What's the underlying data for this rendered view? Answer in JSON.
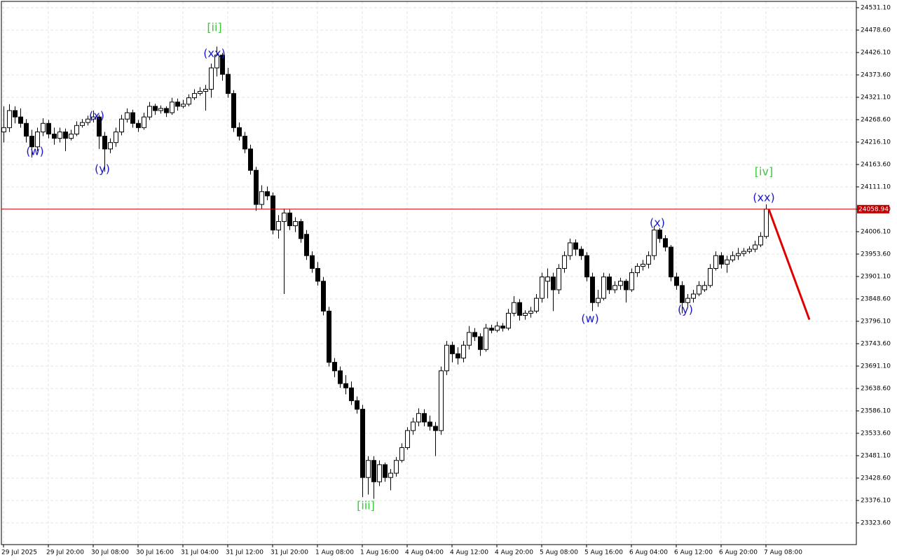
{
  "chart_data": {
    "type": "candlestick",
    "up_color": "#ffffff",
    "down_color": "#000000",
    "outline_color": "#000000",
    "grid": true,
    "ylim": [
      23272.7,
      24545.9
    ],
    "yticks": [
      {
        "value": 24531.1,
        "label": "24531.10"
      },
      {
        "value": 24478.6,
        "label": "24478.60"
      },
      {
        "value": 24426.1,
        "label": "24426.10"
      },
      {
        "value": 24373.6,
        "label": "24373.60"
      },
      {
        "value": 24321.1,
        "label": "24321.10"
      },
      {
        "value": 24268.6,
        "label": "24268.60"
      },
      {
        "value": 24216.1,
        "label": "24216.10"
      },
      {
        "value": 24163.6,
        "label": "24163.60"
      },
      {
        "value": 24111.1,
        "label": "24111.10"
      },
      {
        "value": 24058.6,
        "label": "24058.60"
      },
      {
        "value": 24006.1,
        "label": "24006.10"
      },
      {
        "value": 23953.6,
        "label": "23953.60"
      },
      {
        "value": 23901.1,
        "label": "23901.10"
      },
      {
        "value": 23848.6,
        "label": "23848.60"
      },
      {
        "value": 23796.1,
        "label": "23796.10"
      },
      {
        "value": 23743.6,
        "label": "23743.60"
      },
      {
        "value": 23691.1,
        "label": "23691.10"
      },
      {
        "value": 23638.6,
        "label": "23638.60"
      },
      {
        "value": 23586.1,
        "label": "23586.10"
      },
      {
        "value": 23533.6,
        "label": "23533.60"
      },
      {
        "value": 23481.1,
        "label": "23481.10"
      },
      {
        "value": 23428.6,
        "label": "23428.60"
      },
      {
        "value": 23376.1,
        "label": "23376.10"
      },
      {
        "value": 23323.6,
        "label": "23323.60"
      }
    ],
    "xticks": [
      {
        "value": 0,
        "label": "29 Jul 2025"
      },
      {
        "value": 8,
        "label": "29 Jul 20:00"
      },
      {
        "value": 16,
        "label": "30 Jul 08:00"
      },
      {
        "value": 24,
        "label": "30 Jul 16:00"
      },
      {
        "value": 32,
        "label": "31 Jul 04:00"
      },
      {
        "value": 40,
        "label": "31 Jul 12:00"
      },
      {
        "value": 48,
        "label": "31 Jul 20:00"
      },
      {
        "value": 56,
        "label": "1 Aug 08:00"
      },
      {
        "value": 64,
        "label": "1 Aug 16:00"
      },
      {
        "value": 72,
        "label": "4 Aug 04:00"
      },
      {
        "value": 80,
        "label": "4 Aug 12:00"
      },
      {
        "value": 88,
        "label": "4 Aug 20:00"
      },
      {
        "value": 96,
        "label": "5 Aug 08:00"
      },
      {
        "value": 104,
        "label": "5 Aug 16:00"
      },
      {
        "value": 112,
        "label": "6 Aug 04:00"
      },
      {
        "value": 120,
        "label": "6 Aug 12:00"
      },
      {
        "value": 128,
        "label": "6 Aug 20:00"
      },
      {
        "value": 136,
        "label": "7 Aug 08:00"
      }
    ],
    "current_price": {
      "value": 24058.94,
      "color": "#c00000"
    },
    "projection": {
      "color": "#e00000",
      "values": [
        24059,
        23800
      ]
    },
    "annotations": [
      {
        "text": "(w)",
        "color": "#1a1acd"
      },
      {
        "text": "(x)",
        "color": "#1a1acd"
      },
      {
        "text": "(y)",
        "color": "#1a1acd"
      },
      {
        "text": "[ii]",
        "color": "#3cc83c"
      },
      {
        "text": "(xx)",
        "color": "#1a1acd"
      },
      {
        "text": "[iii]",
        "color": "#3cc83c"
      },
      {
        "text": "(w)",
        "color": "#1a1acd"
      },
      {
        "text": "(x)",
        "color": "#1a1acd"
      },
      {
        "text": "(y)",
        "color": "#1a1acd"
      },
      {
        "text": "[iv]",
        "color": "#3cc83c"
      },
      {
        "text": "(xx)",
        "color": "#1a1acd"
      }
    ],
    "candles": [
      [
        24240,
        24300,
        24215,
        24250
      ],
      [
        24250,
        24305,
        24240,
        24290
      ],
      [
        24290,
        24300,
        24260,
        24275
      ],
      [
        24275,
        24295,
        24250,
        24260
      ],
      [
        24260,
        24270,
        24215,
        24230
      ],
      [
        24230,
        24245,
        24180,
        24205
      ],
      [
        24205,
        24250,
        24195,
        24240
      ],
      [
        24240,
        24272,
        24230,
        24260
      ],
      [
        24260,
        24268,
        24225,
        24235
      ],
      [
        24235,
        24250,
        24210,
        24225
      ],
      [
        24225,
        24250,
        24215,
        24240
      ],
      [
        24240,
        24248,
        24195,
        24225
      ],
      [
        24225,
        24245,
        24220,
        24235
      ],
      [
        24235,
        24265,
        24230,
        24255
      ],
      [
        24255,
        24270,
        24250,
        24262
      ],
      [
        24262,
        24278,
        24255,
        24270
      ],
      [
        24270,
        24290,
        24262,
        24275
      ],
      [
        24275,
        24280,
        24200,
        24230
      ],
      [
        24230,
        24240,
        24147,
        24200
      ],
      [
        24200,
        24225,
        24190,
        24215
      ],
      [
        24215,
        24250,
        24205,
        24240
      ],
      [
        24240,
        24280,
        24232,
        24270
      ],
      [
        24270,
        24295,
        24262,
        24285
      ],
      [
        24285,
        24292,
        24250,
        24260
      ],
      [
        24260,
        24268,
        24240,
        24250
      ],
      [
        24250,
        24285,
        24245,
        24275
      ],
      [
        24275,
        24310,
        24268,
        24300
      ],
      [
        24300,
        24306,
        24280,
        24290
      ],
      [
        24290,
        24302,
        24283,
        24295
      ],
      [
        24295,
        24300,
        24275,
        24285
      ],
      [
        24285,
        24320,
        24280,
        24310
      ],
      [
        24310,
        24318,
        24290,
        24300
      ],
      [
        24300,
        24315,
        24295,
        24305
      ],
      [
        24305,
        24328,
        24300,
        24320
      ],
      [
        24320,
        24340,
        24315,
        24330
      ],
      [
        24330,
        24345,
        24325,
        24335
      ],
      [
        24335,
        24350,
        24290,
        24340
      ],
      [
        24340,
        24400,
        24320,
        24390
      ],
      [
        24390,
        24440,
        24370,
        24420
      ],
      [
        24420,
        24425,
        24360,
        24375
      ],
      [
        24375,
        24390,
        24320,
        24330
      ],
      [
        24330,
        24338,
        24240,
        24250
      ],
      [
        24250,
        24262,
        24220,
        24230
      ],
      [
        24230,
        24240,
        24190,
        24200
      ],
      [
        24200,
        24210,
        24140,
        24150
      ],
      [
        24150,
        24158,
        24055,
        24070
      ],
      [
        24070,
        24115,
        24060,
        24100
      ],
      [
        24100,
        24112,
        24080,
        24090
      ],
      [
        24090,
        24098,
        24000,
        24010
      ],
      [
        24010,
        24045,
        23990,
        24030
      ],
      [
        24030,
        24060,
        23860,
        24050
      ],
      [
        24050,
        24058,
        24010,
        24020
      ],
      [
        24020,
        24040,
        24005,
        24030
      ],
      [
        24030,
        24036,
        23980,
        23990
      ],
      [
        24000,
        24010,
        23940,
        23950
      ],
      [
        23950,
        23960,
        23910,
        23920
      ],
      [
        23920,
        23935,
        23880,
        23890
      ],
      [
        23890,
        23900,
        23810,
        23820
      ],
      [
        23820,
        23830,
        23690,
        23700
      ],
      [
        23700,
        23710,
        23665,
        23680
      ],
      [
        23680,
        23690,
        23640,
        23650
      ],
      [
        23650,
        23670,
        23625,
        23640
      ],
      [
        23640,
        23655,
        23600,
        23610
      ],
      [
        23610,
        23620,
        23580,
        23590
      ],
      [
        23590,
        23600,
        23384,
        23430
      ],
      [
        23430,
        23480,
        23390,
        23470
      ],
      [
        23470,
        23480,
        23380,
        23420
      ],
      [
        23420,
        23470,
        23410,
        23460
      ],
      [
        23460,
        23465,
        23420,
        23430
      ],
      [
        23430,
        23450,
        23400,
        23440
      ],
      [
        23440,
        23478,
        23432,
        23470
      ],
      [
        23470,
        23510,
        23465,
        23500
      ],
      [
        23500,
        23548,
        23495,
        23540
      ],
      [
        23540,
        23570,
        23530,
        23560
      ],
      [
        23560,
        23592,
        23550,
        23580
      ],
      [
        23580,
        23590,
        23550,
        23560
      ],
      [
        23560,
        23575,
        23540,
        23550
      ],
      [
        23550,
        23560,
        23480,
        23540
      ],
      [
        23540,
        23690,
        23530,
        23680
      ],
      [
        23680,
        23750,
        23670,
        23740
      ],
      [
        23740,
        23748,
        23700,
        23720
      ],
      [
        23720,
        23735,
        23695,
        23710
      ],
      [
        23710,
        23750,
        23700,
        23740
      ],
      [
        23740,
        23785,
        23730,
        23770
      ],
      [
        23770,
        23780,
        23750,
        23760
      ],
      [
        23760,
        23768,
        23715,
        23730
      ],
      [
        23730,
        23790,
        23725,
        23780
      ],
      [
        23780,
        23788,
        23768,
        23775
      ],
      [
        23775,
        23795,
        23770,
        23785
      ],
      [
        23785,
        23792,
        23772,
        23780
      ],
      [
        23780,
        23825,
        23775,
        23815
      ],
      [
        23815,
        23855,
        23808,
        23840
      ],
      [
        23840,
        23848,
        23798,
        23810
      ],
      [
        23810,
        23822,
        23800,
        23815
      ],
      [
        23815,
        23830,
        23805,
        23820
      ],
      [
        23820,
        23860,
        23815,
        23850
      ],
      [
        23850,
        23910,
        23840,
        23900
      ],
      [
        23890,
        23920,
        23850,
        23900
      ],
      [
        23900,
        23910,
        23820,
        23870
      ],
      [
        23870,
        23930,
        23860,
        23920
      ],
      [
        23920,
        23960,
        23910,
        23950
      ],
      [
        23950,
        23990,
        23940,
        23980
      ],
      [
        23980,
        23988,
        23950,
        23965
      ],
      [
        23965,
        23972,
        23940,
        23950
      ],
      [
        23950,
        23958,
        23890,
        23900
      ],
      [
        23900,
        23910,
        23820,
        23840
      ],
      [
        23840,
        23870,
        23830,
        23850
      ],
      [
        23850,
        23910,
        23845,
        23900
      ],
      [
        23900,
        23908,
        23860,
        23870
      ],
      [
        23870,
        23890,
        23862,
        23880
      ],
      [
        23880,
        23898,
        23870,
        23890
      ],
      [
        23890,
        23895,
        23840,
        23870
      ],
      [
        23870,
        23920,
        23865,
        23910
      ],
      [
        23910,
        23932,
        23900,
        23925
      ],
      [
        23925,
        23940,
        23915,
        23930
      ],
      [
        23930,
        23960,
        23920,
        23950
      ],
      [
        23950,
        24020,
        23940,
        24010
      ],
      [
        24010,
        24015,
        23980,
        23990
      ],
      [
        23990,
        23998,
        23960,
        23970
      ],
      [
        23970,
        23975,
        23890,
        23900
      ],
      [
        23900,
        23910,
        23870,
        23880
      ],
      [
        23880,
        23890,
        23815,
        23840
      ],
      [
        23840,
        23860,
        23830,
        23850
      ],
      [
        23850,
        23870,
        23840,
        23860
      ],
      [
        23860,
        23890,
        23855,
        23880
      ],
      [
        23870,
        23890,
        23865,
        23880
      ],
      [
        23880,
        23930,
        23875,
        23920
      ],
      [
        23920,
        23960,
        23915,
        23950
      ],
      [
        23950,
        23958,
        23920,
        23930
      ],
      [
        23930,
        23950,
        23910,
        23940
      ],
      [
        23940,
        23960,
        23935,
        23950
      ],
      [
        23950,
        23968,
        23940,
        23955
      ],
      [
        23955,
        23968,
        23948,
        23960
      ],
      [
        23960,
        23972,
        23955,
        23965
      ],
      [
        23965,
        23985,
        23958,
        23975
      ],
      [
        23975,
        24005,
        23970,
        23995
      ],
      [
        23995,
        24070,
        23990,
        24059
      ]
    ]
  }
}
